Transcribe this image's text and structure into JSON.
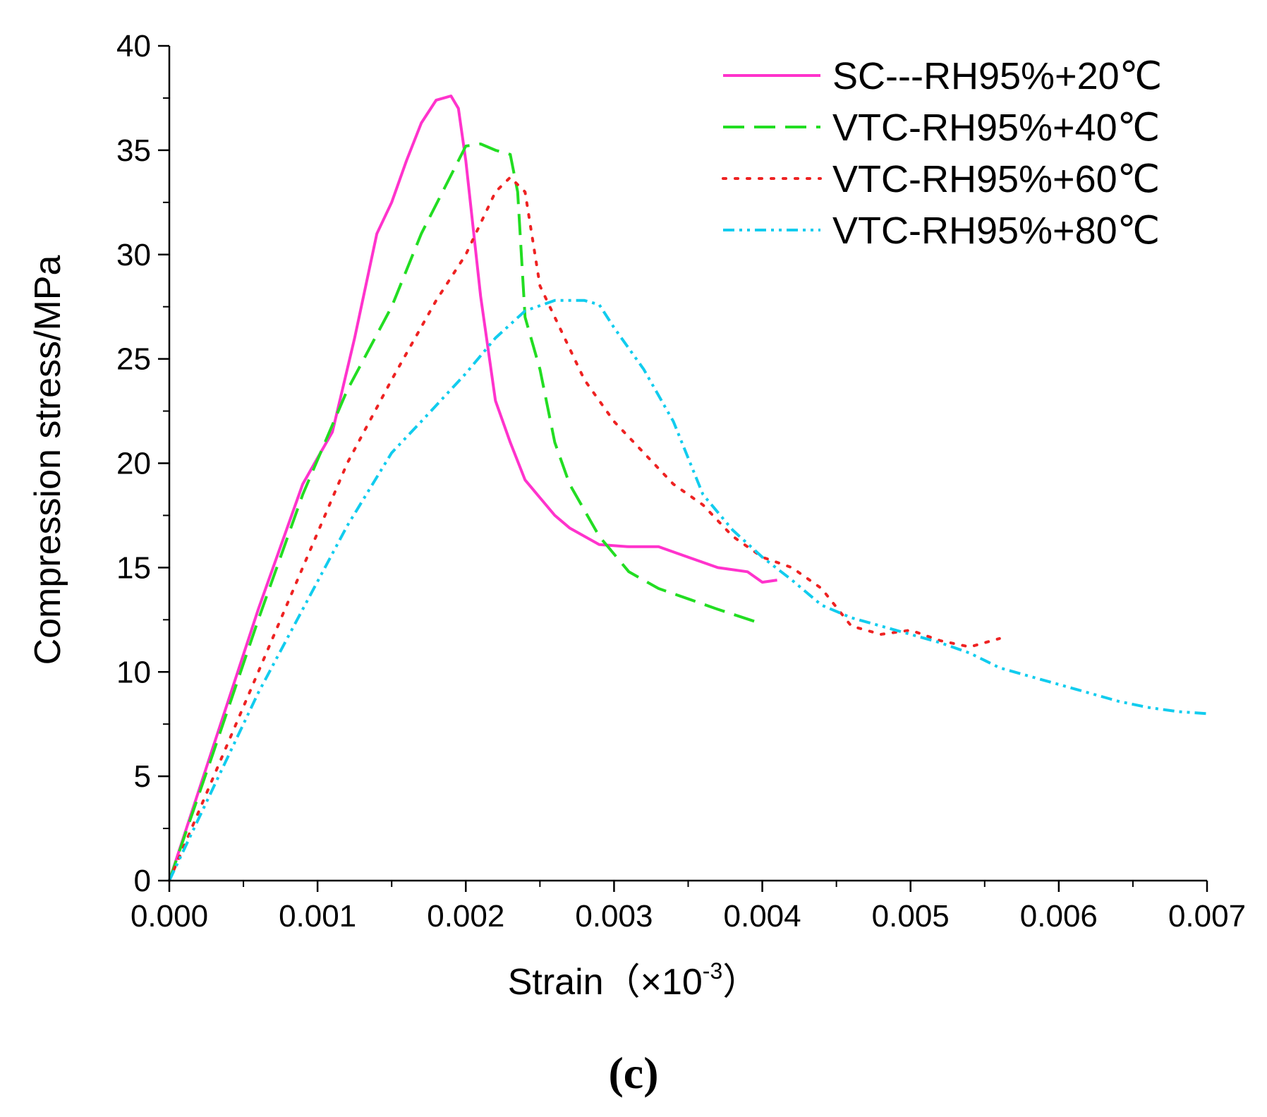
{
  "chart_data": {
    "type": "line",
    "title": "",
    "xlabel_main": "Strain（×10",
    "xlabel_sup": "-3",
    "xlabel_close": "）",
    "ylabel": "Compression stress/MPa",
    "xlim": [
      0,
      0.007
    ],
    "ylim": [
      0,
      40
    ],
    "x_ticks": [
      0.0,
      0.001,
      0.002,
      0.003,
      0.004,
      0.005,
      0.006,
      0.007
    ],
    "x_tick_labels": [
      "0.000",
      "0.001",
      "0.002",
      "0.003",
      "0.004",
      "0.005",
      "0.006",
      "0.007"
    ],
    "y_ticks": [
      0,
      5,
      10,
      15,
      20,
      25,
      30,
      35,
      40
    ],
    "y_tick_labels": [
      "0",
      "5",
      "10",
      "15",
      "20",
      "25",
      "30",
      "35",
      "40"
    ],
    "legend_position": "top-right",
    "panel_label": "(c)",
    "series": [
      {
        "name": "SC---RH95%+20℃",
        "color": "#ff33cc",
        "dash": "solid",
        "points": [
          [
            0,
            0
          ],
          [
            0.0003,
            6.5
          ],
          [
            0.0006,
            13
          ],
          [
            0.0009,
            19
          ],
          [
            0.0011,
            21.5
          ],
          [
            0.00125,
            26
          ],
          [
            0.0014,
            31
          ],
          [
            0.0015,
            32.5
          ],
          [
            0.0016,
            34.5
          ],
          [
            0.0017,
            36.3
          ],
          [
            0.0018,
            37.4
          ],
          [
            0.0019,
            37.6
          ],
          [
            0.00195,
            37
          ],
          [
            0.002,
            34.5
          ],
          [
            0.0021,
            28
          ],
          [
            0.0022,
            23
          ],
          [
            0.0023,
            21
          ],
          [
            0.0024,
            19.2
          ],
          [
            0.0026,
            17.5
          ],
          [
            0.0027,
            16.9
          ],
          [
            0.0029,
            16.1
          ],
          [
            0.0031,
            16
          ],
          [
            0.0033,
            16
          ],
          [
            0.0035,
            15.5
          ],
          [
            0.0037,
            15
          ],
          [
            0.0039,
            14.8
          ],
          [
            0.004,
            14.3
          ],
          [
            0.0041,
            14.4
          ]
        ]
      },
      {
        "name": "VTC-RH95%+40℃",
        "color": "#22dd22",
        "dash": "long",
        "points": [
          [
            0,
            0
          ],
          [
            0.0003,
            6.2
          ],
          [
            0.0006,
            12.5
          ],
          [
            0.0009,
            18.5
          ],
          [
            0.0012,
            23.5
          ],
          [
            0.0015,
            27.5
          ],
          [
            0.0017,
            31
          ],
          [
            0.0019,
            33.8
          ],
          [
            0.002,
            35.2
          ],
          [
            0.0021,
            35.3
          ],
          [
            0.0022,
            35
          ],
          [
            0.0023,
            34.8
          ],
          [
            0.00235,
            33
          ],
          [
            0.0024,
            27
          ],
          [
            0.0025,
            24.5
          ],
          [
            0.0026,
            21
          ],
          [
            0.0027,
            19
          ],
          [
            0.0029,
            16.5
          ],
          [
            0.0031,
            14.8
          ],
          [
            0.0033,
            14
          ],
          [
            0.0035,
            13.5
          ],
          [
            0.0037,
            13
          ],
          [
            0.004,
            12.3
          ]
        ]
      },
      {
        "name": "VTC-RH95%+60℃",
        "color": "#ee2222",
        "dash": "dot",
        "points": [
          [
            0,
            0
          ],
          [
            0.0003,
            5
          ],
          [
            0.0006,
            10
          ],
          [
            0.0009,
            15
          ],
          [
            0.0012,
            20
          ],
          [
            0.0015,
            24
          ],
          [
            0.0018,
            27.8
          ],
          [
            0.002,
            30
          ],
          [
            0.0022,
            33
          ],
          [
            0.0023,
            33.7
          ],
          [
            0.0024,
            33
          ],
          [
            0.0025,
            28.5
          ],
          [
            0.0026,
            27
          ],
          [
            0.0028,
            24
          ],
          [
            0.003,
            22
          ],
          [
            0.0032,
            20.5
          ],
          [
            0.0034,
            19
          ],
          [
            0.0036,
            18
          ],
          [
            0.0038,
            16.5
          ],
          [
            0.004,
            15.5
          ],
          [
            0.0042,
            15
          ],
          [
            0.0044,
            14
          ],
          [
            0.0046,
            12.2
          ],
          [
            0.0048,
            11.8
          ],
          [
            0.005,
            12
          ],
          [
            0.0052,
            11.5
          ],
          [
            0.0054,
            11.2
          ],
          [
            0.0056,
            11.6
          ]
        ]
      },
      {
        "name": "VTC-RH95%+80℃",
        "color": "#11ccee",
        "dash": "dashdot",
        "points": [
          [
            0,
            0
          ],
          [
            0.0003,
            4.5
          ],
          [
            0.0006,
            9
          ],
          [
            0.0009,
            13
          ],
          [
            0.0012,
            17
          ],
          [
            0.0015,
            20.5
          ],
          [
            0.0017,
            22
          ],
          [
            0.002,
            24.3
          ],
          [
            0.0022,
            26
          ],
          [
            0.0024,
            27.3
          ],
          [
            0.0026,
            27.8
          ],
          [
            0.0028,
            27.8
          ],
          [
            0.0029,
            27.6
          ],
          [
            0.003,
            26.5
          ],
          [
            0.0032,
            24.5
          ],
          [
            0.0034,
            22
          ],
          [
            0.0036,
            18.5
          ],
          [
            0.0038,
            16.8
          ],
          [
            0.004,
            15.5
          ],
          [
            0.0042,
            14.4
          ],
          [
            0.0044,
            13.2
          ],
          [
            0.0046,
            12.6
          ],
          [
            0.0048,
            12.2
          ],
          [
            0.005,
            11.8
          ],
          [
            0.0052,
            11.4
          ],
          [
            0.0054,
            10.9
          ],
          [
            0.0056,
            10.2
          ],
          [
            0.0058,
            9.8
          ],
          [
            0.006,
            9.4
          ],
          [
            0.0062,
            9
          ],
          [
            0.0064,
            8.6
          ],
          [
            0.0066,
            8.3
          ],
          [
            0.0068,
            8.1
          ],
          [
            0.007,
            8
          ]
        ]
      }
    ]
  }
}
